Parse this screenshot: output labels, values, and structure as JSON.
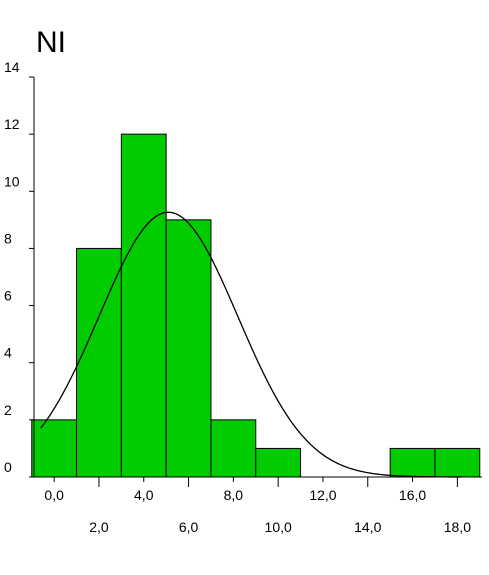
{
  "chart_data": {
    "type": "bar",
    "title": "NI",
    "xlabel": "",
    "ylabel": "",
    "xlim": [
      -0.9,
      19.1
    ],
    "ylim": [
      0,
      14
    ],
    "bin_width": 2,
    "bins": [
      {
        "center": 0,
        "value": 2
      },
      {
        "center": 2,
        "value": 8
      },
      {
        "center": 4,
        "value": 12
      },
      {
        "center": 6,
        "value": 9
      },
      {
        "center": 8,
        "value": 2
      },
      {
        "center": 10,
        "value": 1
      },
      {
        "center": 12,
        "value": 0
      },
      {
        "center": 14,
        "value": 0
      },
      {
        "center": 16,
        "value": 1
      },
      {
        "center": 18,
        "value": 1
      }
    ],
    "y_ticks": [
      0,
      2,
      4,
      6,
      8,
      10,
      12,
      14
    ],
    "x_ticks": [
      {
        "value": 0,
        "label": "0,0",
        "row": "upper"
      },
      {
        "value": 2,
        "label": "2,0",
        "row": "lower"
      },
      {
        "value": 4,
        "label": "4,0",
        "row": "upper"
      },
      {
        "value": 6,
        "label": "6,0",
        "row": "lower"
      },
      {
        "value": 8,
        "label": "8,0",
        "row": "upper"
      },
      {
        "value": 10,
        "label": "10,0",
        "row": "lower"
      },
      {
        "value": 12,
        "label": "12,0",
        "row": "upper"
      },
      {
        "value": 14,
        "label": "14,0",
        "row": "lower"
      },
      {
        "value": 16,
        "label": "16,0",
        "row": "upper"
      },
      {
        "value": 18,
        "label": "18,0",
        "row": "lower"
      }
    ],
    "normal_curve": {
      "mean": 5.1,
      "sd": 3.1,
      "n": 36
    },
    "grid": false,
    "legend": "none",
    "colors": {
      "bar_fill": "#00cc00",
      "bar_stroke": "#000000",
      "curve": "#000000",
      "axis": "#000000"
    }
  }
}
